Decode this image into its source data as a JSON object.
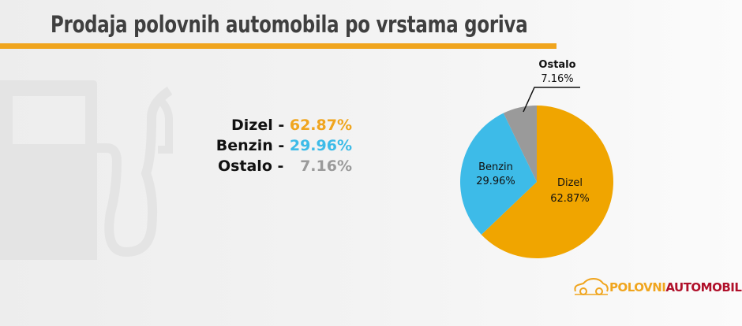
{
  "title": "Prodaja polovnih automobila po vrstama goriva",
  "legend": [
    {
      "label": "Dizel -",
      "value": "62.87%",
      "color": "#f0a51e"
    },
    {
      "label": "Benzin -",
      "value": "29.96%",
      "color": "#3dbbe8"
    },
    {
      "label": "Ostalo -",
      "value": "7.16%",
      "color": "#9a9a9a"
    }
  ],
  "chart_data": {
    "type": "pie",
    "title": "Prodaja polovnih automobila po vrstama goriva",
    "slices": [
      {
        "name": "Dizel",
        "value": 62.87,
        "label": "62.87%",
        "color": "#f0a500"
      },
      {
        "name": "Benzin",
        "value": 29.96,
        "label": "29.96%",
        "color": "#3dbbe8"
      },
      {
        "name": "Ostalo",
        "value": 7.16,
        "label": "7.16%",
        "color": "#9a9a9a"
      }
    ],
    "start": "top",
    "direction": "clockwise"
  },
  "logo": {
    "part1": "POLOVNI",
    "part2": "AUTOMOBILI",
    "icon": "car-outline-icon"
  },
  "background_icon": "fuel-pump-icon"
}
